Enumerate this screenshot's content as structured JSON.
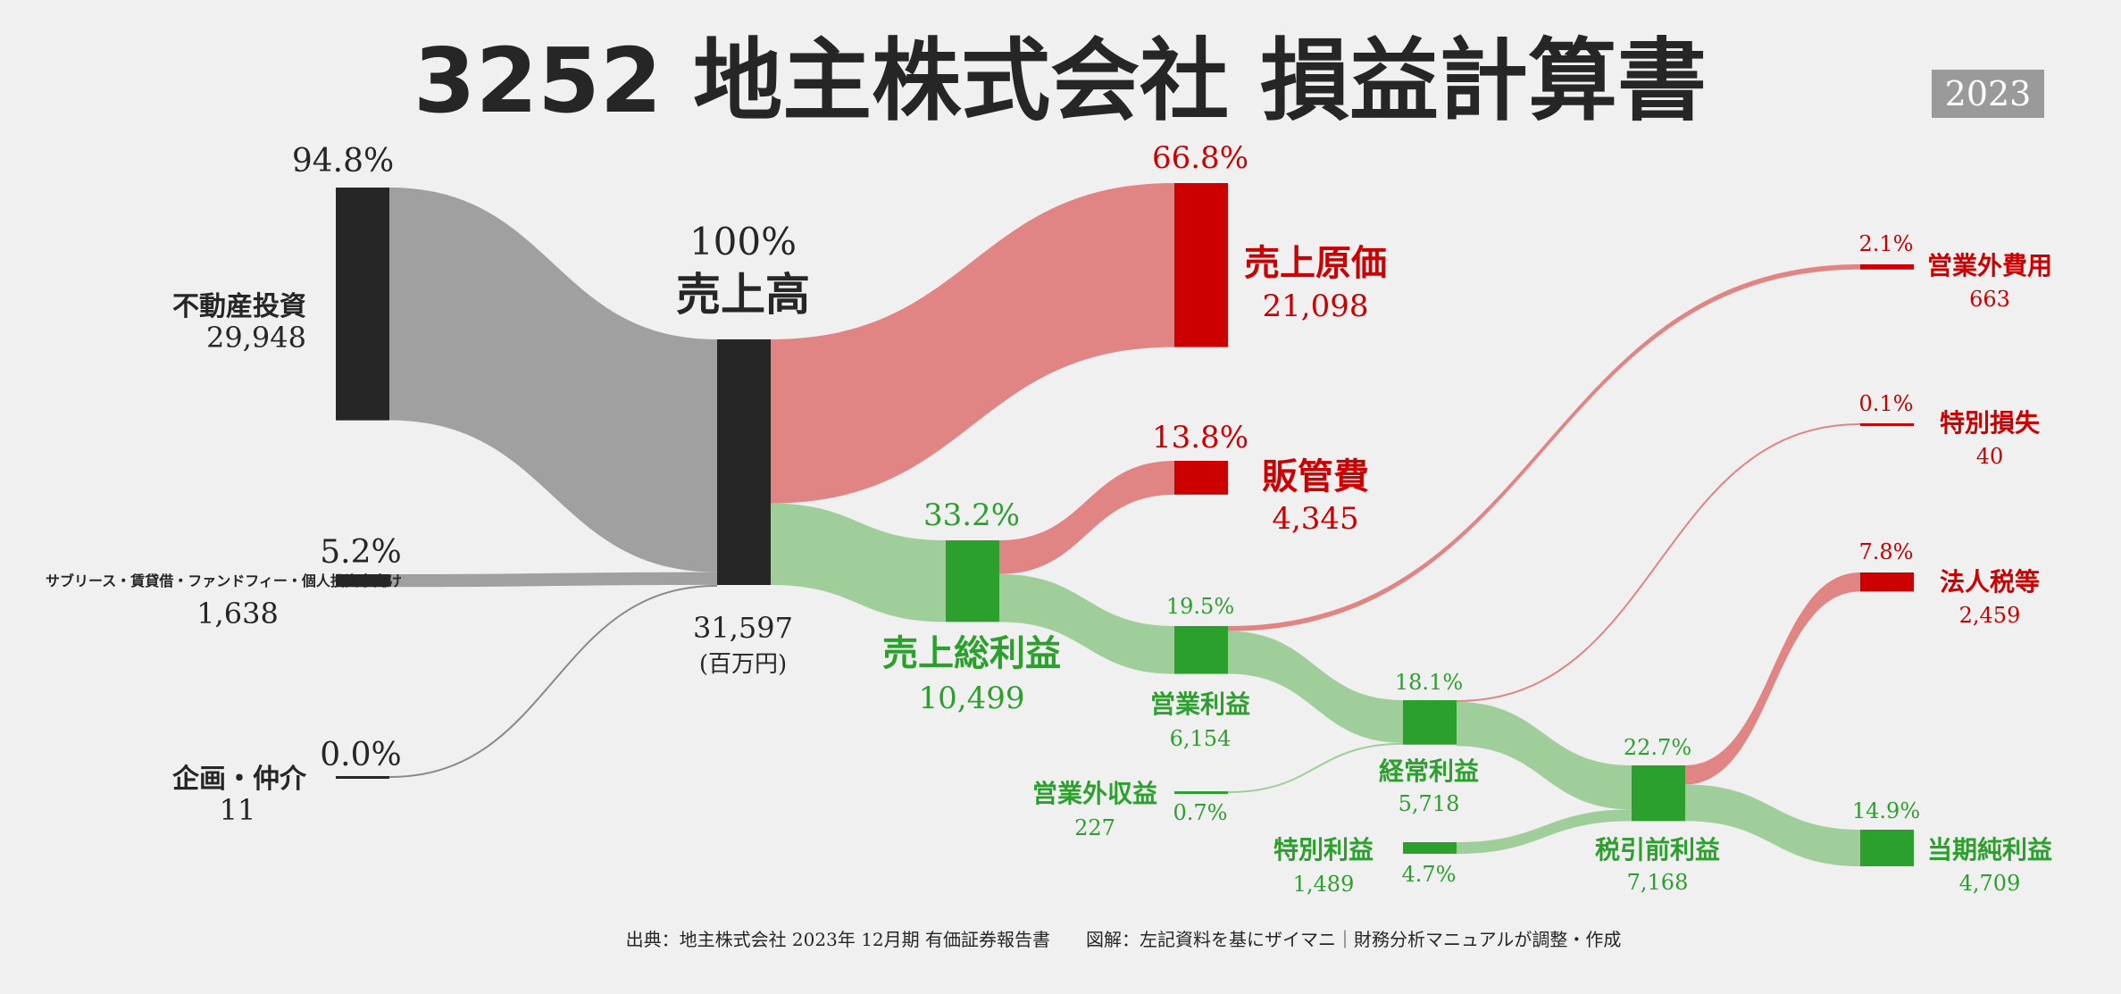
{
  "title": "3252 地主株式会社 損益計算書",
  "year_badge": "2023",
  "unit_label": "(百万円)",
  "source_note": "出典：地主株式会社 2023年 12月期 有価証券報告書　　図解：左記資料を基にザイマニ｜財務分析マニュアルが調整・作成",
  "colors": {
    "dark": "#262626",
    "gray_flow": "#a0a0a0",
    "red": "#cc0000",
    "red_flow": "#e08484",
    "green": "#2ca02c",
    "green_flow": "#9fce9b",
    "background": "#f0f0f0",
    "badge": "#9a9a9a"
  },
  "chart_data": {
    "type": "sankey",
    "unit": "百万円",
    "nodes": [
      {
        "id": "fudosan",
        "label": "不動産投資",
        "value": 29948,
        "value_text": "29,948",
        "pct": "94.8%"
      },
      {
        "id": "sublease",
        "label": "サブリース・賃貸借・ファンドフィー・個人投資家向け",
        "value": 1638,
        "value_text": "1,638",
        "pct": "5.2%"
      },
      {
        "id": "kikaku",
        "label": "企画・仲介",
        "value": 11,
        "value_text": "11",
        "pct": "0.0%"
      },
      {
        "id": "revenue",
        "label": "売上高",
        "value": 31597,
        "value_text": "31,597",
        "pct": "100%"
      },
      {
        "id": "cogs",
        "label": "売上原価",
        "value": 21098,
        "value_text": "21,098",
        "pct": "66.8%"
      },
      {
        "id": "gross",
        "label": "売上総利益",
        "value": 10499,
        "value_text": "10,499",
        "pct": "33.2%"
      },
      {
        "id": "sga",
        "label": "販管費",
        "value": 4345,
        "value_text": "4,345",
        "pct": "13.8%"
      },
      {
        "id": "op",
        "label": "営業利益",
        "value": 6154,
        "value_text": "6,154",
        "pct": "19.5%"
      },
      {
        "id": "nonop_inc",
        "label": "営業外収益",
        "value": 227,
        "value_text": "227",
        "pct": "0.7%"
      },
      {
        "id": "nonop_exp",
        "label": "営業外費用",
        "value": 663,
        "value_text": "663",
        "pct": "2.1%"
      },
      {
        "id": "ordinary",
        "label": "経常利益",
        "value": 5718,
        "value_text": "5,718",
        "pct": "18.1%"
      },
      {
        "id": "ext_inc",
        "label": "特別利益",
        "value": 1489,
        "value_text": "1,489",
        "pct": "4.7%"
      },
      {
        "id": "ext_loss",
        "label": "特別損失",
        "value": 40,
        "value_text": "40",
        "pct": "0.1%"
      },
      {
        "id": "pretax",
        "label": "税引前利益",
        "value": 7168,
        "value_text": "7,168",
        "pct": "22.7%"
      },
      {
        "id": "tax",
        "label": "法人税等",
        "value": 2459,
        "value_text": "2,459",
        "pct": "7.8%"
      },
      {
        "id": "net",
        "label": "当期純利益",
        "value": 4709,
        "value_text": "4,709",
        "pct": "14.9%"
      }
    ],
    "links": [
      {
        "source": "fudosan",
        "target": "revenue",
        "value": 29948
      },
      {
        "source": "sublease",
        "target": "revenue",
        "value": 1638
      },
      {
        "source": "kikaku",
        "target": "revenue",
        "value": 11
      },
      {
        "source": "revenue",
        "target": "cogs",
        "value": 21098
      },
      {
        "source": "revenue",
        "target": "gross",
        "value": 10499
      },
      {
        "source": "gross",
        "target": "sga",
        "value": 4345
      },
      {
        "source": "gross",
        "target": "op",
        "value": 6154
      },
      {
        "source": "op",
        "target": "nonop_exp",
        "value": 663
      },
      {
        "source": "op",
        "target": "ordinary",
        "value": 5491
      },
      {
        "source": "nonop_inc",
        "target": "ordinary",
        "value": 227
      },
      {
        "source": "ordinary",
        "target": "ext_loss",
        "value": 40
      },
      {
        "source": "ordinary",
        "target": "pretax",
        "value": 5678
      },
      {
        "source": "ext_inc",
        "target": "pretax",
        "value": 1489
      },
      {
        "source": "pretax",
        "target": "tax",
        "value": 2459
      },
      {
        "source": "pretax",
        "target": "net",
        "value": 4709
      }
    ]
  }
}
